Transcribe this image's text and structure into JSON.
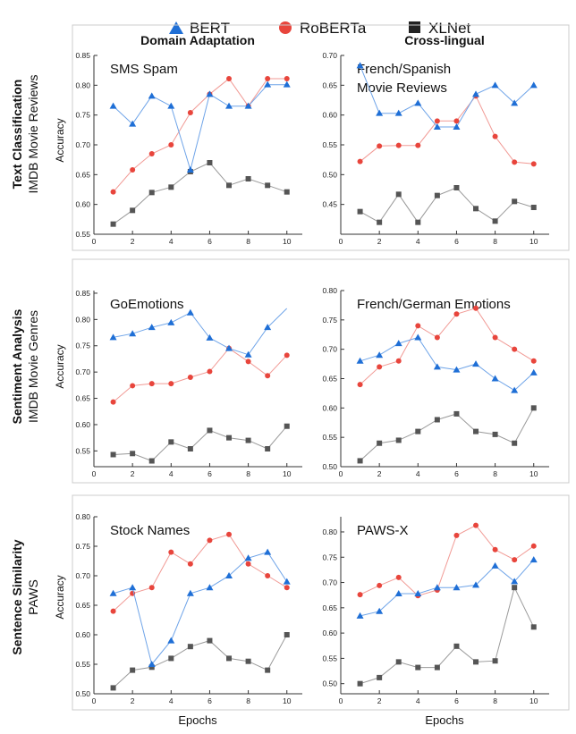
{
  "legend": [
    {
      "label": "BERT",
      "marker": "triangle",
      "color": "#1f6fd6"
    },
    {
      "label": "RoBERTa",
      "marker": "circle",
      "color": "#e8453c"
    },
    {
      "label": "XLNet",
      "marker": "square",
      "color": "#222222"
    }
  ],
  "line_colors": {
    "BERT": "#6fa4e8",
    "RoBERTa": "#f19a95",
    "XLNet": "#9a9a9a"
  },
  "column_titles": [
    "Domain Adaptation",
    "Cross-lingual"
  ],
  "row_labels": [
    {
      "bold": "Text Classification",
      "normal": "IMDB Movie Reviews"
    },
    {
      "bold": "Sentiment Analysis",
      "normal": "IMDB Movie Genres"
    },
    {
      "bold": "Sentence Similarity",
      "normal": "PAWS"
    }
  ],
  "xlabel": "Epochs",
  "ylabel": "Accuracy",
  "chart_data": [
    {
      "type": "line",
      "row": 0,
      "col": 0,
      "title": [
        "SMS Spam"
      ],
      "x": [
        1,
        2,
        3,
        4,
        5,
        6,
        7,
        8,
        9,
        10
      ],
      "xlim": [
        0,
        10.8
      ],
      "xticks": [
        0,
        2,
        4,
        6,
        8,
        10
      ],
      "ylim": [
        0.55,
        0.85
      ],
      "yticks": [
        "0.55",
        "0.60",
        "0.65",
        "0.70",
        "0.75",
        "0.80",
        "0.85"
      ],
      "series": [
        {
          "name": "BERT",
          "values": [
            0.765,
            0.735,
            0.782,
            0.765,
            0.658,
            0.785,
            0.765,
            0.765,
            0.801,
            0.801
          ]
        },
        {
          "name": "RoBERTa",
          "values": [
            0.621,
            0.658,
            0.685,
            0.7,
            0.754,
            0.785,
            0.811,
            0.765,
            0.811,
            0.811
          ]
        },
        {
          "name": "XLNet",
          "values": [
            0.567,
            0.59,
            0.62,
            0.629,
            0.655,
            0.67,
            0.632,
            0.643,
            0.632,
            0.621
          ]
        }
      ]
    },
    {
      "type": "line",
      "row": 0,
      "col": 1,
      "title": [
        "French/Spanish",
        "Movie Reviews"
      ],
      "x": [
        1,
        2,
        3,
        4,
        5,
        6,
        7,
        8,
        9,
        10
      ],
      "xlim": [
        0,
        10.8
      ],
      "xticks": [
        0,
        2,
        4,
        6,
        8,
        10
      ],
      "ylim": [
        0.4,
        0.7
      ],
      "yticks": [
        "0.45",
        "0.50",
        "0.55",
        "0.60",
        "0.65",
        "0.70"
      ],
      "series": [
        {
          "name": "BERT",
          "values": [
            0.683,
            0.603,
            0.603,
            0.62,
            0.58,
            0.58,
            0.635,
            0.65,
            0.62,
            0.65
          ]
        },
        {
          "name": "RoBERTa",
          "values": [
            0.522,
            0.548,
            0.549,
            0.549,
            0.59,
            0.59,
            0.632,
            0.564,
            0.521,
            0.518
          ]
        },
        {
          "name": "XLNet",
          "values": [
            0.438,
            0.42,
            0.467,
            0.42,
            0.465,
            0.478,
            0.443,
            0.422,
            0.455,
            0.445
          ]
        }
      ]
    },
    {
      "type": "line",
      "row": 1,
      "col": 0,
      "title": [
        "GoEmotions"
      ],
      "x": [
        1,
        2,
        3,
        4,
        5,
        6,
        7,
        8,
        9,
        10
      ],
      "xlim": [
        0,
        10.8
      ],
      "xticks": [
        0,
        2,
        4,
        6,
        8,
        10
      ],
      "ylim": [
        0.52,
        0.855
      ],
      "yticks": [
        "0.55",
        "0.60",
        "0.65",
        "0.70",
        "0.75",
        "0.80",
        "0.85"
      ],
      "series": [
        {
          "name": "BERT",
          "values": [
            0.766,
            0.773,
            0.785,
            0.794,
            0.813,
            0.765,
            0.745,
            0.733,
            0.785,
            0.821
          ],
          "markers": [
            true,
            true,
            true,
            true,
            true,
            true,
            true,
            true,
            true,
            false
          ]
        },
        {
          "name": "RoBERTa",
          "values": [
            0.643,
            0.674,
            0.678,
            0.678,
            0.69,
            0.701,
            0.745,
            0.72,
            0.693,
            0.732
          ]
        },
        {
          "name": "XLNet",
          "values": [
            0.543,
            0.545,
            0.531,
            0.567,
            0.554,
            0.589,
            0.575,
            0.57,
            0.554,
            0.597
          ]
        }
      ]
    },
    {
      "type": "line",
      "row": 1,
      "col": 1,
      "title": [
        "French/German Emotions"
      ],
      "x": [
        1,
        2,
        3,
        4,
        5,
        6,
        7,
        8,
        9,
        10
      ],
      "xlim": [
        0,
        10.8
      ],
      "xticks": [
        0,
        2,
        4,
        6,
        8,
        10
      ],
      "ylim": [
        0.5,
        0.8
      ],
      "yticks": [
        "0.50",
        "0.55",
        "0.60",
        "0.65",
        "0.70",
        "0.75",
        "0.80"
      ],
      "series": [
        {
          "name": "BERT",
          "values": [
            0.68,
            0.69,
            0.71,
            0.72,
            0.67,
            0.665,
            0.675,
            0.65,
            0.63,
            0.66
          ]
        },
        {
          "name": "RoBERTa",
          "values": [
            0.64,
            0.67,
            0.68,
            0.74,
            0.72,
            0.76,
            0.77,
            0.72,
            0.7,
            0.68
          ]
        },
        {
          "name": "XLNet",
          "values": [
            0.51,
            0.54,
            0.545,
            0.56,
            0.58,
            0.59,
            0.56,
            0.555,
            0.54,
            0.6
          ]
        }
      ]
    },
    {
      "type": "line",
      "row": 2,
      "col": 0,
      "title": [
        "Stock Names"
      ],
      "x": [
        1,
        2,
        3,
        4,
        5,
        6,
        7,
        8,
        9,
        10
      ],
      "xlim": [
        0,
        10.8
      ],
      "xticks": [
        0,
        2,
        4,
        6,
        8,
        10
      ],
      "ylim": [
        0.5,
        0.8
      ],
      "yticks": [
        "0.50",
        "0.55",
        "0.60",
        "0.65",
        "0.70",
        "0.75",
        "0.80"
      ],
      "series": [
        {
          "name": "BERT",
          "values": [
            0.67,
            0.68,
            0.55,
            0.59,
            0.67,
            0.68,
            0.7,
            0.73,
            0.74,
            0.69
          ]
        },
        {
          "name": "RoBERTa",
          "values": [
            0.64,
            0.67,
            0.68,
            0.74,
            0.72,
            0.76,
            0.77,
            0.72,
            0.7,
            0.68
          ]
        },
        {
          "name": "XLNet",
          "values": [
            0.51,
            0.54,
            0.545,
            0.56,
            0.58,
            0.59,
            0.56,
            0.555,
            0.54,
            0.6
          ]
        }
      ]
    },
    {
      "type": "line",
      "row": 2,
      "col": 1,
      "title": [
        "PAWS-X"
      ],
      "x": [
        1,
        2,
        3,
        4,
        5,
        6,
        7,
        8,
        9,
        10
      ],
      "xlim": [
        0,
        10.8
      ],
      "xticks": [
        0,
        2,
        4,
        6,
        8,
        10
      ],
      "ylim": [
        0.48,
        0.83
      ],
      "yticks": [
        "0.50",
        "0.55",
        "0.60",
        "0.65",
        "0.70",
        "0.75",
        "0.80"
      ],
      "series": [
        {
          "name": "BERT",
          "values": [
            0.634,
            0.643,
            0.678,
            0.678,
            0.69,
            0.69,
            0.695,
            0.733,
            0.702,
            0.745
          ]
        },
        {
          "name": "RoBERTa",
          "values": [
            0.676,
            0.694,
            0.71,
            0.674,
            0.685,
            0.793,
            0.813,
            0.765,
            0.745,
            0.772
          ]
        },
        {
          "name": "XLNet",
          "values": [
            0.5,
            0.512,
            0.543,
            0.532,
            0.532,
            0.574,
            0.543,
            0.545,
            0.69,
            0.612
          ]
        }
      ]
    }
  ]
}
